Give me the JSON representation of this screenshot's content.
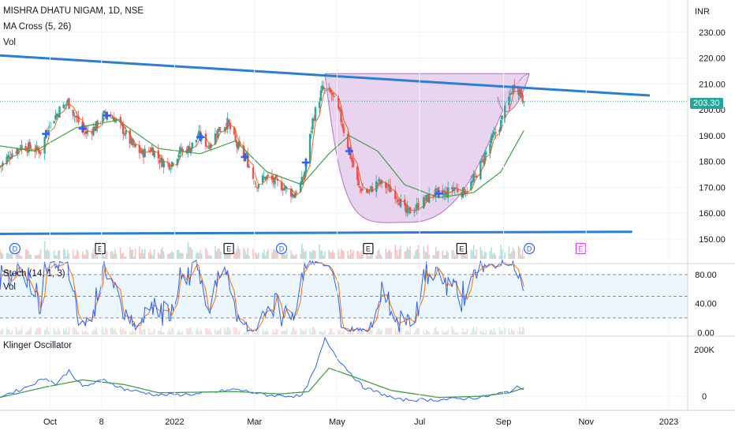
{
  "header": {
    "symbol_title": "MISHRA DHATU NIGAM, 1D, NSE",
    "ma_cross_label": "MA Cross (5, 26)",
    "volume_label": "Vol",
    "currency": "INR",
    "last_price": "203.30"
  },
  "stoch_panel": {
    "title": "Stoch (14, 1, 3)",
    "volume_label": "Vol"
  },
  "klinger_panel": {
    "title": "Klinger Oscillator"
  },
  "colors": {
    "up": "#26a69a",
    "down": "#ef5350",
    "trendline": "#2a7fd4",
    "pattern_fill": "#e1c6ea",
    "pattern_stroke": "#b46cc8",
    "ma_fast": "#e65100",
    "ma_slow": "#43a047",
    "stoch_k": "#2962ff",
    "stoch_d": "#ff6d00",
    "klinger": "#2962ff",
    "klinger_signal": "#43a047",
    "cross_marker": "#2962ff",
    "dividend": "#2962ff",
    "earnings": "#131722",
    "earnings_future": "#e040fb"
  },
  "chart_data": [
    {
      "type": "candlestick",
      "title": "MISHRA DHATU NIGAM, 1D, NSE",
      "unit": "INR",
      "y_ticks": [
        150.0,
        160.0,
        170.0,
        180.0,
        190.0,
        200.0,
        210.0,
        220.0,
        230.0
      ],
      "y_tick_labels": [
        "150.00",
        "160.00",
        "170.00",
        "180.00",
        "190.00",
        "200.00",
        "210.00",
        "220.00",
        "230.00"
      ],
      "ylim": [
        146,
        240
      ],
      "x_tick_labels": [
        "Oct",
        "8",
        "2022",
        "Mar",
        "May",
        "Jul",
        "Sep",
        "Nov",
        "2023"
      ],
      "x_tick_dates": [
        "2021-10-01",
        "2021-11-08",
        "2022-01-01",
        "2022-03-01",
        "2022-05-01",
        "2022-07-01",
        "2022-09-01",
        "2022-11-01",
        "2023-01-01"
      ],
      "x_range": [
        "2021-08-25",
        "2023-01-15"
      ],
      "price_path": [
        [
          "2021-08-25",
          178
        ],
        [
          "2021-09-02",
          183
        ],
        [
          "2021-09-10",
          186
        ],
        [
          "2021-09-17",
          185
        ],
        [
          "2021-09-24",
          184
        ],
        [
          "2021-09-30",
          194
        ],
        [
          "2021-10-08",
          200
        ],
        [
          "2021-10-14",
          203
        ],
        [
          "2021-10-20",
          197
        ],
        [
          "2021-10-27",
          191
        ],
        [
          "2021-11-03",
          193
        ],
        [
          "2021-11-10",
          198
        ],
        [
          "2021-11-17",
          197
        ],
        [
          "2021-11-24",
          192
        ],
        [
          "2021-12-01",
          186
        ],
        [
          "2021-12-08",
          183
        ],
        [
          "2021-12-15",
          185
        ],
        [
          "2021-12-22",
          180
        ],
        [
          "2021-12-29",
          179
        ],
        [
          "2022-01-05",
          184
        ],
        [
          "2022-01-12",
          185
        ],
        [
          "2022-01-19",
          190
        ],
        [
          "2022-01-26",
          186
        ],
        [
          "2022-02-02",
          192
        ],
        [
          "2022-02-09",
          195
        ],
        [
          "2022-02-16",
          186
        ],
        [
          "2022-02-23",
          181
        ],
        [
          "2022-03-02",
          171
        ],
        [
          "2022-03-09",
          174
        ],
        [
          "2022-03-16",
          172
        ],
        [
          "2022-03-23",
          170
        ],
        [
          "2022-03-30",
          167
        ],
        [
          "2022-04-06",
          173
        ],
        [
          "2022-04-13",
          196
        ],
        [
          "2022-04-20",
          208
        ],
        [
          "2022-04-27",
          206
        ],
        [
          "2022-05-03",
          198
        ],
        [
          "2022-05-10",
          184
        ],
        [
          "2022-05-17",
          170
        ],
        [
          "2022-05-24",
          168
        ],
        [
          "2022-05-31",
          172
        ],
        [
          "2022-06-07",
          170
        ],
        [
          "2022-06-14",
          167
        ],
        [
          "2022-06-21",
          160
        ],
        [
          "2022-06-28",
          162
        ],
        [
          "2022-07-05",
          165
        ],
        [
          "2022-07-12",
          168
        ],
        [
          "2022-07-19",
          167
        ],
        [
          "2022-07-26",
          170
        ],
        [
          "2022-08-02",
          168
        ],
        [
          "2022-08-09",
          172
        ],
        [
          "2022-08-16",
          180
        ],
        [
          "2022-08-23",
          188
        ],
        [
          "2022-08-30",
          195
        ],
        [
          "2022-09-06",
          206
        ],
        [
          "2022-09-09",
          210
        ],
        [
          "2022-09-13",
          207
        ],
        [
          "2022-09-16",
          203.3
        ]
      ],
      "ma_slow": [
        [
          "2021-08-25",
          186
        ],
        [
          "2021-09-20",
          184
        ],
        [
          "2021-10-20",
          193
        ],
        [
          "2021-11-20",
          196
        ],
        [
          "2021-12-20",
          185
        ],
        [
          "2022-01-20",
          183
        ],
        [
          "2022-02-15",
          188
        ],
        [
          "2022-03-10",
          176
        ],
        [
          "2022-04-05",
          171
        ],
        [
          "2022-04-25",
          183
        ],
        [
          "2022-05-10",
          190
        ],
        [
          "2022-05-31",
          184
        ],
        [
          "2022-06-20",
          171
        ],
        [
          "2022-07-15",
          166
        ],
        [
          "2022-08-10",
          168
        ],
        [
          "2022-08-30",
          176
        ],
        [
          "2022-09-16",
          192
        ]
      ],
      "ma_cross_markers": [
        "2021-09-28",
        "2021-10-25",
        "2021-11-12",
        "2022-01-20",
        "2022-02-22",
        "2022-04-08",
        "2022-05-10",
        "2022-07-15"
      ],
      "trendlines": [
        {
          "name": "resistance",
          "from": [
            "2021-08-25",
            221
          ],
          "to": [
            "2022-12-18",
            205.5
          ]
        },
        {
          "name": "support",
          "from": [
            "2021-08-25",
            152
          ],
          "to": [
            "2022-12-05",
            152.8
          ]
        }
      ],
      "cup_pattern": {
        "left_rim": [
          "2022-04-22",
          214
        ],
        "bottom": [
          "2022-06-25",
          156.5
        ],
        "right_rim": [
          "2022-09-20",
          214
        ]
      },
      "events": [
        {
          "type": "D",
          "date": "2021-09-05"
        },
        {
          "type": "E",
          "date": "2021-11-07"
        },
        {
          "type": "E",
          "date": "2022-02-10"
        },
        {
          "type": "D",
          "date": "2022-03-21"
        },
        {
          "type": "E",
          "date": "2022-05-24"
        },
        {
          "type": "E",
          "date": "2022-08-01"
        },
        {
          "type": "D",
          "date": "2022-09-20"
        },
        {
          "type": "E",
          "date": "2022-10-28"
        }
      ],
      "last_price": 203.3
    },
    {
      "type": "line",
      "title": "Stoch (14, 1, 3)",
      "y_tick_labels": [
        "80.00",
        "40.00",
        "0.00"
      ],
      "y_ticks": [
        80,
        40,
        0
      ],
      "ylim": [
        -3,
        93
      ],
      "bands": [
        20,
        50,
        80
      ],
      "series": [
        {
          "values_from": "price_path"
        }
      ]
    },
    {
      "type": "line",
      "title": "Klinger Oscillator",
      "y_tick_labels": [
        "200K",
        "0"
      ],
      "y_ticks": [
        200000,
        0
      ],
      "ylim": [
        -60000,
        250000
      ],
      "series": [
        {
          "points": [
            [
              "2021-08-25",
              0
            ],
            [
              "2021-09-10",
              30000
            ],
            [
              "2021-09-28",
              80000
            ],
            [
              "2021-10-05",
              50000
            ],
            [
              "2021-10-15",
              110000
            ],
            [
              "2021-10-25",
              40000
            ],
            [
              "2021-11-10",
              70000
            ],
            [
              "2021-11-25",
              30000
            ],
            [
              "2021-12-20",
              5000
            ],
            [
              "2022-01-20",
              10000
            ],
            [
              "2022-02-15",
              30000
            ],
            [
              "2022-03-10",
              5000
            ],
            [
              "2022-04-05",
              0
            ],
            [
              "2022-04-15",
              120000
            ],
            [
              "2022-04-22",
              245000
            ],
            [
              "2022-05-03",
              150000
            ],
            [
              "2022-05-20",
              40000
            ],
            [
              "2022-06-15",
              -15000
            ],
            [
              "2022-07-15",
              -15000
            ],
            [
              "2022-08-15",
              -5000
            ],
            [
              "2022-09-05",
              20000
            ],
            [
              "2022-09-12",
              40000
            ],
            [
              "2022-09-16",
              30000
            ]
          ]
        },
        {
          "points": [
            [
              "2021-08-25",
              -5000
            ],
            [
              "2021-09-28",
              40000
            ],
            [
              "2021-10-25",
              70000
            ],
            [
              "2021-11-25",
              50000
            ],
            [
              "2021-12-20",
              15000
            ],
            [
              "2022-02-15",
              20000
            ],
            [
              "2022-03-20",
              10000
            ],
            [
              "2022-04-10",
              20000
            ],
            [
              "2022-04-25",
              120000
            ],
            [
              "2022-05-15",
              80000
            ],
            [
              "2022-06-10",
              25000
            ],
            [
              "2022-07-15",
              -5000
            ],
            [
              "2022-08-15",
              0
            ],
            [
              "2022-09-05",
              15000
            ],
            [
              "2022-09-16",
              35000
            ]
          ]
        }
      ]
    }
  ]
}
